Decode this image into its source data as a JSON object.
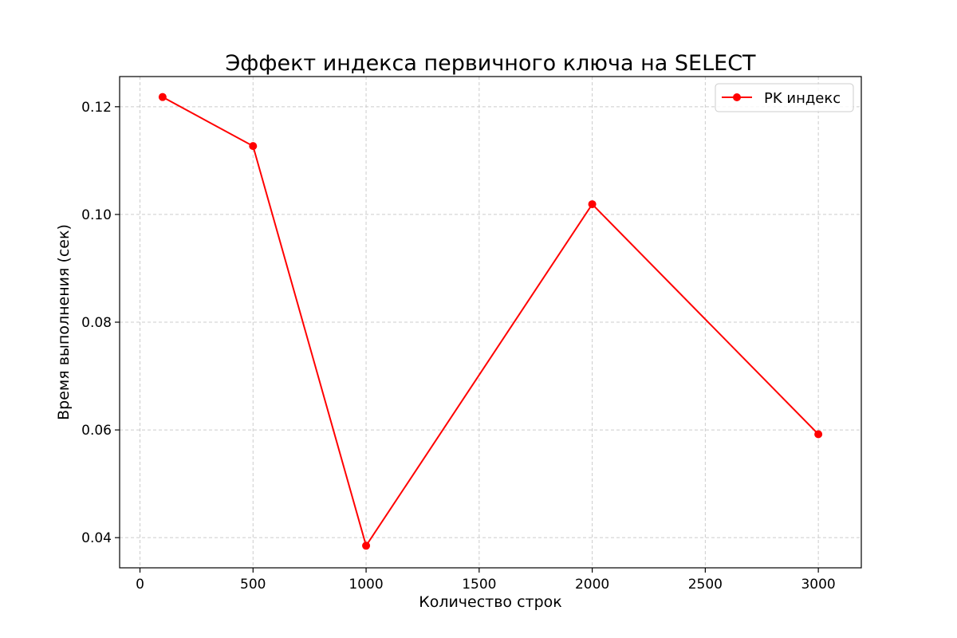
{
  "chart_data": {
    "type": "line",
    "title": "Эффект индекса первичного ключа на SELECT",
    "xlabel": "Количество строк",
    "ylabel": "Время выполнения (сек)",
    "xlim": [
      -90,
      3190
    ],
    "ylim": [
      0.0344,
      0.1256
    ],
    "xticks": [
      0,
      500,
      1000,
      1500,
      2000,
      2500,
      3000
    ],
    "yticks": [
      0.04,
      0.06,
      0.08,
      0.1,
      0.12
    ],
    "ytick_labels": [
      "0.04",
      "0.06",
      "0.08",
      "0.10",
      "0.12"
    ],
    "grid": true,
    "legend_position": "top-right",
    "series": [
      {
        "name": "PK индекс",
        "color": "#ff0000",
        "marker": "circle",
        "x": [
          100,
          500,
          1000,
          2000,
          3000
        ],
        "y": [
          0.1218,
          0.1127,
          0.0385,
          0.1019,
          0.0592
        ]
      }
    ]
  }
}
